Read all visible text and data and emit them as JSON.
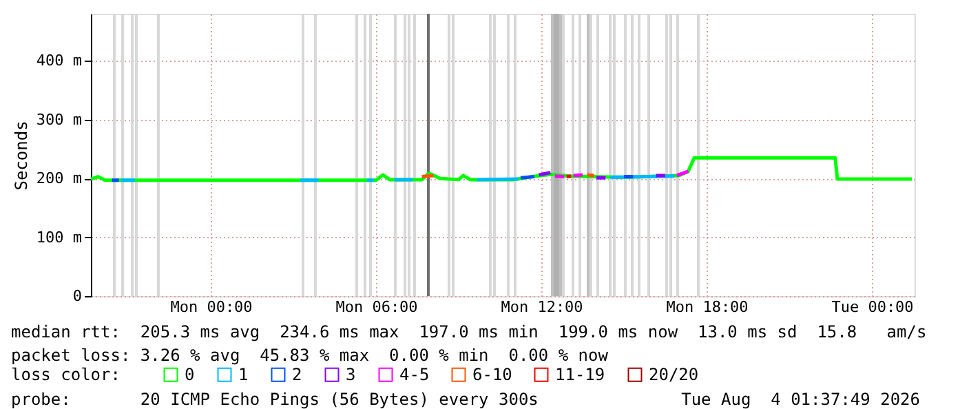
{
  "chart_data": {
    "type": "line",
    "ylabel": "Seconds",
    "xlim": [
      "2026-08-02T19:39",
      "2026-08-04T01:33"
    ],
    "xticks": [
      {
        "value": "2026-08-03T00:00",
        "label": "Mon 00:00"
      },
      {
        "value": "2026-08-03T06:00",
        "label": "Mon 06:00"
      },
      {
        "value": "2026-08-03T12:00",
        "label": "Mon 12:00"
      },
      {
        "value": "2026-08-03T18:00",
        "label": "Mon 18:00"
      },
      {
        "value": "2026-08-04T00:00",
        "label": "Tue 00:00"
      }
    ],
    "ylim": [
      0,
      480
    ],
    "yticks": [
      {
        "value": 0,
        "label": "0"
      },
      {
        "value": 100,
        "label": "100 m"
      },
      {
        "value": 200,
        "label": "200 m"
      },
      {
        "value": 300,
        "label": "300 m"
      },
      {
        "value": 400,
        "label": "400 m"
      }
    ],
    "grid": true,
    "legend": "bottom",
    "legend_title": "loss color:",
    "series": [
      {
        "name": "0",
        "color": "#00ff00",
        "x": [
          "2026-08-02T19:39",
          "2026-08-02T19:55",
          "2026-08-02T20:10",
          "2026-08-03T06:00",
          "2026-08-03T06:15",
          "2026-08-03T06:30",
          "2026-08-03T07:40",
          "2026-08-03T07:55",
          "2026-08-03T08:20",
          "2026-08-03T09:00",
          "2026-08-03T09:10",
          "2026-08-03T09:25",
          "2026-08-03T11:00",
          "2026-08-03T11:40",
          "2026-08-03T12:20",
          "2026-08-03T13:00",
          "2026-08-03T15:00",
          "2026-08-03T17:00",
          "2026-08-03T17:20",
          "2026-08-03T17:33",
          "2026-08-03T22:40",
          "2026-08-03T22:45",
          "2026-08-04T01:27"
        ],
        "values": [
          199,
          203,
          197,
          197,
          206,
          198,
          198,
          209,
          200,
          198,
          205,
          198,
          198,
          203,
          207,
          204,
          202,
          205,
          212,
          235,
          235,
          199,
          199
        ]
      },
      {
        "name": "1",
        "color": "#00b8ff",
        "x": [
          "2026-08-02T20:45",
          "2026-08-02T21:15",
          "2026-08-02T21:20",
          "2026-08-03T03:15",
          "2026-08-03T03:55",
          "2026-08-03T04:00",
          "2026-08-03T05:40",
          "2026-08-03T05:55",
          "2026-08-03T06:00",
          "2026-08-03T06:40",
          "2026-08-03T07:20",
          "2026-08-03T07:25",
          "2026-08-03T09:40",
          "2026-08-03T11:10",
          "2026-08-03T11:15",
          "2026-08-03T14:30",
          "2026-08-03T16:50"
        ],
        "values": [
          197,
          197,
          null,
          197,
          197,
          null,
          197,
          197,
          null,
          198,
          198,
          null,
          198,
          199,
          null,
          202,
          204
        ]
      },
      {
        "name": "2",
        "color": "#0050ff",
        "x": [
          "2026-08-02T20:25",
          "2026-08-02T20:40",
          "2026-08-02T20:45",
          "2026-08-03T11:15",
          "2026-08-03T11:45",
          "2026-08-03T11:50",
          "2026-08-03T15:00",
          "2026-08-03T15:20"
        ],
        "values": [
          197,
          197,
          null,
          201,
          203,
          null,
          203,
          203
        ]
      },
      {
        "name": "3",
        "color": "#8a00ff",
        "x": [
          "2026-08-03T11:55",
          "2026-08-03T12:20",
          "2026-08-03T12:25",
          "2026-08-03T14:00",
          "2026-08-03T14:20",
          "2026-08-03T14:25",
          "2026-08-03T16:10",
          "2026-08-03T16:30"
        ],
        "values": [
          206,
          210,
          null,
          201,
          201,
          null,
          205,
          205
        ]
      },
      {
        "name": "4-5",
        "color": "#ff00ff",
        "x": [
          "2026-08-03T12:30",
          "2026-08-03T12:50",
          "2026-08-03T12:55",
          "2026-08-03T13:10",
          "2026-08-03T13:30",
          "2026-08-03T13:35",
          "2026-08-03T16:55",
          "2026-08-03T17:20"
        ],
        "values": [
          204,
          203,
          null,
          205,
          206,
          null,
          205,
          212
        ]
      },
      {
        "name": "6-10",
        "color": "#ff5500",
        "x": [
          "2026-08-03T07:40",
          "2026-08-03T08:05",
          "2026-08-03T08:10",
          "2026-08-03T13:40",
          "2026-08-03T13:55"
        ],
        "values": [
          203,
          205,
          null,
          206,
          205
        ]
      },
      {
        "name": "11-19",
        "color": "#ff0000",
        "x": [
          "2026-08-03T12:55",
          "2026-08-03T13:05"
        ],
        "values": [
          203,
          204
        ]
      },
      {
        "name": "20/20",
        "color": "#a10000"
      }
    ],
    "ref_lines": [
      {
        "axis": "x",
        "value": "2026-08-02T20:30",
        "color": "#d8d8d8"
      },
      {
        "axis": "x",
        "value": "2026-08-02T20:48",
        "color": "#d8d8d8"
      },
      {
        "axis": "x",
        "value": "2026-08-02T21:09",
        "color": "#d8d8d8"
      },
      {
        "axis": "x",
        "value": "2026-08-02T21:18",
        "color": "#d8d8d8"
      },
      {
        "axis": "x",
        "value": "2026-08-02T22:06",
        "color": "#d8d8d8"
      },
      {
        "axis": "x",
        "value": "2026-08-03T03:21",
        "color": "#d8d8d8"
      },
      {
        "axis": "x",
        "value": "2026-08-03T03:48",
        "color": "#d8d8d8"
      },
      {
        "axis": "x",
        "value": "2026-08-03T05:18",
        "color": "#d8d8d8"
      },
      {
        "axis": "x",
        "value": "2026-08-03T05:36",
        "color": "#d8d8d8"
      },
      {
        "axis": "x",
        "value": "2026-08-03T05:48",
        "color": "#d8d8d8"
      },
      {
        "axis": "x",
        "value": "2026-08-03T06:42",
        "color": "#d8d8d8"
      },
      {
        "axis": "x",
        "value": "2026-08-03T07:03",
        "color": "#d8d8d8"
      },
      {
        "axis": "x",
        "value": "2026-08-03T07:12",
        "color": "#d8d8d8"
      },
      {
        "axis": "x",
        "value": "2026-08-03T07:24",
        "color": "#d8d8d8"
      },
      {
        "axis": "x",
        "value": "2026-08-03T07:54",
        "color": "#707070"
      },
      {
        "axis": "x",
        "value": "2026-08-03T08:39",
        "color": "#d8d8d8"
      },
      {
        "axis": "x",
        "value": "2026-08-03T08:48",
        "color": "#d8d8d8"
      },
      {
        "axis": "x",
        "value": "2026-08-03T10:09",
        "color": "#d8d8d8"
      },
      {
        "axis": "x",
        "value": "2026-08-03T10:18",
        "color": "#d8d8d8"
      },
      {
        "axis": "x",
        "value": "2026-08-03T10:48",
        "color": "#d8d8d8"
      },
      {
        "axis": "x",
        "value": "2026-08-03T11:03",
        "color": "#d8d8d8"
      },
      {
        "axis": "x",
        "value": "2026-08-03T12:24",
        "color": "#c0c0c0"
      },
      {
        "axis": "x",
        "value": "2026-08-03T12:30",
        "color": "#b0b0b0"
      },
      {
        "axis": "x",
        "value": "2026-08-03T12:36",
        "color": "#b0b0b0"
      },
      {
        "axis": "x",
        "value": "2026-08-03T12:42",
        "color": "#c0c0c0"
      },
      {
        "axis": "x",
        "value": "2026-08-03T12:48",
        "color": "#d8d8d8"
      },
      {
        "axis": "x",
        "value": "2026-08-03T13:09",
        "color": "#d8d8d8"
      },
      {
        "axis": "x",
        "value": "2026-08-03T13:24",
        "color": "#d8d8d8"
      },
      {
        "axis": "x",
        "value": "2026-08-03T13:42",
        "color": "#c0c0c0"
      },
      {
        "axis": "x",
        "value": "2026-08-03T13:48",
        "color": "#d8d8d8"
      },
      {
        "axis": "x",
        "value": "2026-08-03T14:03",
        "color": "#d8d8d8"
      },
      {
        "axis": "x",
        "value": "2026-08-03T14:30",
        "color": "#d8d8d8"
      },
      {
        "axis": "x",
        "value": "2026-08-03T14:39",
        "color": "#d8d8d8"
      },
      {
        "axis": "x",
        "value": "2026-08-03T15:03",
        "color": "#d8d8d8"
      },
      {
        "axis": "x",
        "value": "2026-08-03T15:18",
        "color": "#d8d8d8"
      },
      {
        "axis": "x",
        "value": "2026-08-03T15:33",
        "color": "#d8d8d8"
      },
      {
        "axis": "x",
        "value": "2026-08-03T15:54",
        "color": "#d8d8d8"
      },
      {
        "axis": "x",
        "value": "2026-08-03T16:33",
        "color": "#d8d8d8"
      },
      {
        "axis": "x",
        "value": "2026-08-03T16:42",
        "color": "#d8d8d8"
      },
      {
        "axis": "x",
        "value": "2026-08-03T16:57",
        "color": "#d8d8d8"
      },
      {
        "axis": "x",
        "value": "2026-08-03T17:42",
        "color": "#d8d8d8"
      }
    ],
    "annotations": [
      "median rtt:  205.3 ms avg  234.6 ms max  197.0 ms min  199.0 ms now  13.0 ms sd  15.8   am/s",
      "packet loss: 3.26 % avg  45.83 % max  0.00 % min  0.00 % now",
      "probe:       20 ICMP Echo Pings (56 Bytes) every 300s",
      "Tue Aug  4 01:37:49 2026"
    ]
  }
}
